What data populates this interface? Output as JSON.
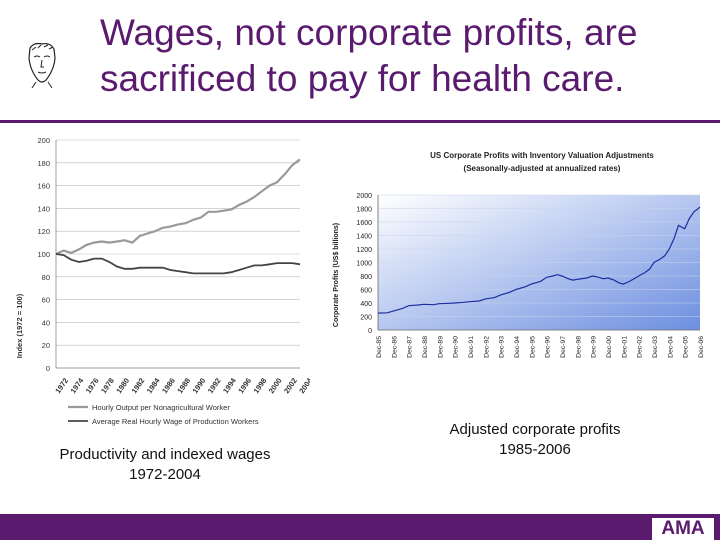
{
  "slide": {
    "title_line1": "Wages, not corporate profits, are",
    "title_line2": "sacrificed to pay for health care.",
    "caption_left_line1": "Productivity and indexed wages",
    "caption_left_line2": "1972-2004",
    "caption_right_line1": "Adjusted corporate profits",
    "caption_right_line2": "1985-2006",
    "logo_text": "AMA",
    "colors": {
      "accent": "#5a1a6e",
      "gridline": "#bbbbbb",
      "productivity": "#999999",
      "wages": "#444444",
      "profits": "#1c2fa0"
    }
  },
  "chart_data": [
    {
      "type": "line",
      "ylabel": "Index (1972 = 100)",
      "ylim": [
        0,
        200
      ],
      "yticks": [
        "0",
        "20",
        "40",
        "60",
        "80",
        "100",
        "120",
        "140",
        "160",
        "180",
        "200"
      ],
      "xlim": [
        1972,
        2004
      ],
      "xticks": [
        "1972",
        "1974",
        "1976",
        "1978",
        "1980",
        "1982",
        "1984",
        "1986",
        "1988",
        "1990",
        "1992",
        "1994",
        "1996",
        "1998",
        "2000",
        "2002",
        "2004"
      ],
      "grid": true,
      "legend_placement": "bottom",
      "x": [
        1972,
        1973,
        1974,
        1975,
        1976,
        1977,
        1978,
        1979,
        1980,
        1981,
        1982,
        1983,
        1984,
        1985,
        1986,
        1987,
        1988,
        1989,
        1990,
        1991,
        1992,
        1993,
        1994,
        1995,
        1996,
        1997,
        1998,
        1999,
        2000,
        2001,
        2002,
        2003,
        2004
      ],
      "series": [
        {
          "name": "Hourly Output per Nonagricultural Worker",
          "values": [
            100,
            103,
            101,
            104,
            108,
            110,
            111,
            110,
            111,
            112,
            110,
            116,
            118,
            120,
            123,
            124,
            126,
            127,
            130,
            132,
            137,
            137,
            138,
            139,
            143,
            146,
            150,
            155,
            160,
            163,
            170,
            178,
            183
          ]
        },
        {
          "name": "Average Real Hourly Wage of Production Workers",
          "values": [
            100,
            99,
            95,
            93,
            94,
            96,
            96,
            93,
            89,
            87,
            87,
            88,
            88,
            88,
            88,
            86,
            85,
            84,
            83,
            83,
            83,
            83,
            83,
            84,
            86,
            88,
            90,
            90,
            91,
            92,
            92,
            92,
            91
          ]
        }
      ]
    },
    {
      "type": "area",
      "title": "US Corporate Profits with Inventory Valuation Adjustments",
      "subtitle": "(Seasonally-adjusted at annualized rates)",
      "ylabel": "Corporate Profits (US$ billions)",
      "ylim": [
        0,
        2000
      ],
      "yticks": [
        "0",
        "200",
        "400",
        "600",
        "800",
        "1000",
        "1200",
        "1400",
        "1600",
        "1800",
        "2000"
      ],
      "xlim": [
        1985.9,
        2006.9
      ],
      "xticks": [
        "Dec-85",
        "Dec-86",
        "Dec-87",
        "Dec-88",
        "Dec-89",
        "Dec-90",
        "Dec-91",
        "Dec-92",
        "Dec-93",
        "Dec-94",
        "Dec-95",
        "Dec-96",
        "Dec-97",
        "Dec-98",
        "Dec-99",
        "Dec-00",
        "Dec-01",
        "Dec-02",
        "Dec-03",
        "Dec-04",
        "Dec-05",
        "Dec-06"
      ],
      "grid": true,
      "x": [
        1985.9,
        1986.5,
        1986.9,
        1987.5,
        1987.9,
        1988.5,
        1988.9,
        1989.5,
        1989.9,
        1990.5,
        1990.9,
        1991.5,
        1991.9,
        1992.5,
        1992.9,
        1993.5,
        1993.9,
        1994.5,
        1994.9,
        1995.5,
        1995.9,
        1996.5,
        1996.9,
        1997.3,
        1997.6,
        1997.9,
        1998.3,
        1998.6,
        1998.9,
        1999.5,
        1999.9,
        2000.3,
        2000.6,
        2000.9,
        2001.3,
        2001.6,
        2001.9,
        2002.3,
        2002.6,
        2002.9,
        2003.3,
        2003.6,
        2003.9,
        2004.3,
        2004.6,
        2004.9,
        2005.2,
        2005.5,
        2005.9,
        2006.2,
        2006.5,
        2006.9
      ],
      "values": [
        250,
        255,
        280,
        320,
        360,
        370,
        380,
        375,
        390,
        395,
        400,
        410,
        420,
        430,
        460,
        480,
        520,
        560,
        600,
        640,
        680,
        720,
        780,
        800,
        820,
        800,
        760,
        740,
        750,
        770,
        800,
        780,
        760,
        770,
        740,
        700,
        680,
        720,
        760,
        800,
        850,
        900,
        1000,
        1050,
        1100,
        1200,
        1350,
        1550,
        1500,
        1650,
        1750,
        1820
      ]
    }
  ]
}
